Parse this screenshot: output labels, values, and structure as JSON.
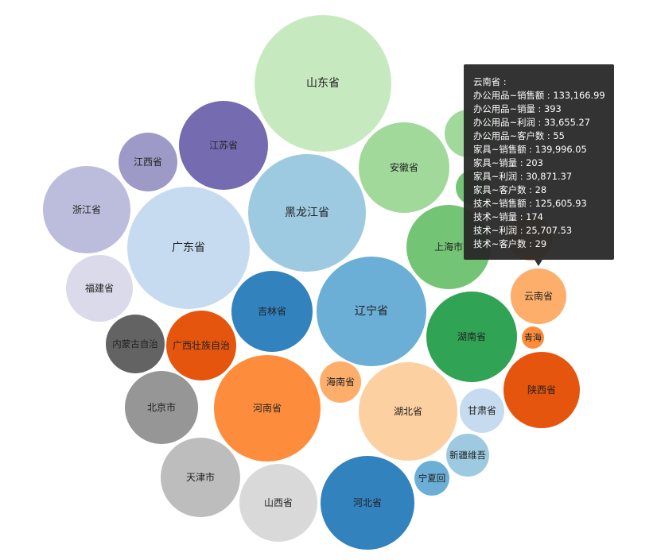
{
  "chart_data": {
    "type": "bubble",
    "bubbles": [
      {
        "label": "山东省",
        "color": "#c7e9c0"
      },
      {
        "label": "江苏省",
        "color": "#756bb1"
      },
      {
        "label": "江西省",
        "color": "#9e9ac8"
      },
      {
        "label": "浙江省",
        "color": "#bcbddc"
      },
      {
        "label": "广东省",
        "color": "#c6dbef"
      },
      {
        "label": "黑龙江省",
        "color": "#9ecae1"
      },
      {
        "label": "安徽省",
        "color": "#a1d99b"
      },
      {
        "label": "",
        "color": "#a1d99b"
      },
      {
        "label": "",
        "color": "#74c476"
      },
      {
        "label": "上海市",
        "color": "#74c476"
      },
      {
        "label": "福建省",
        "color": "#dadaeb"
      },
      {
        "label": "吉林省",
        "color": "#3182bd"
      },
      {
        "label": "辽宁省",
        "color": "#6baed6"
      },
      {
        "label": "云南省",
        "color": "#fdae6b"
      },
      {
        "label": "",
        "color": "#fdae6b"
      },
      {
        "label": "湖南省",
        "color": "#31a354"
      },
      {
        "label": "青海",
        "color": "#fd8d3c"
      },
      {
        "label": "内蒙古自治",
        "color": "#636363"
      },
      {
        "label": "广西壮族自治",
        "color": "#e6550d"
      },
      {
        "label": "陕西省",
        "color": "#e6550d"
      },
      {
        "label": "海南省",
        "color": "#fdae6b"
      },
      {
        "label": "北京市",
        "color": "#969696"
      },
      {
        "label": "河南省",
        "color": "#fd8d3c"
      },
      {
        "label": "湖北省",
        "color": "#fdd0a2"
      },
      {
        "label": "甘肃省",
        "color": "#c6dbef"
      },
      {
        "label": "新疆维吾",
        "color": "#9ecae1"
      },
      {
        "label": "天津市",
        "color": "#bdbdbd"
      },
      {
        "label": "山西省",
        "color": "#d9d9d9"
      },
      {
        "label": "河北省",
        "color": "#3182bd"
      },
      {
        "label": "宁夏回",
        "color": "#6baed6"
      }
    ]
  },
  "tooltip": {
    "lines": [
      "云南省 :",
      "办公用品~销售额 : 133,166.99",
      "办公用品~销量 : 393",
      "办公用品~利润 : 33,655.27",
      "办公用品~客户数 : 55",
      "家具~销售额 : 139,996.05",
      "家具~销量 : 203",
      "家具~利润 : 30,871.37",
      "家具~客户数 : 28",
      "技术~销售额 : 125,605.93",
      "技术~销量 : 174",
      "技术~利润 : 25,707.53",
      "技术~客户数 : 29"
    ]
  }
}
